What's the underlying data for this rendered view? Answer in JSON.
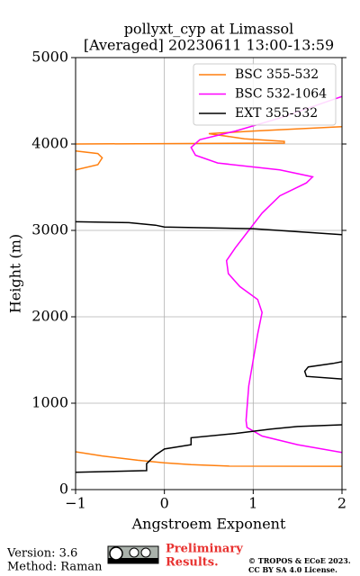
{
  "chart_data": {
    "type": "line",
    "title": "pollyxt_cyp at Limassol",
    "subtitle": "[Averaged] 20230611 13:00-13:59",
    "x_label": "Angstroem Exponent",
    "y_label": "Height (m)",
    "xlim": [
      -1,
      2
    ],
    "ylim": [
      0,
      5000
    ],
    "xticks": [
      {
        "value": -1,
        "label": "−1"
      },
      0,
      1,
      2
    ],
    "yticks": [
      0,
      1000,
      2000,
      3000,
      4000,
      5000
    ],
    "grid": true,
    "legend": "upper right",
    "series": [
      {
        "name": "BSC 355-532",
        "color": "#ff7f0e",
        "x": [
          2,
          0.73,
          0.3,
          0,
          -0.3,
          -0.7,
          -1,
          null,
          -1,
          -0.75,
          -0.7,
          -0.75,
          -1,
          null,
          -1,
          1.35,
          1.35,
          0.9,
          0.5,
          1.0,
          2
        ],
        "y": [
          270,
          272,
          290,
          310,
          340,
          390,
          437,
          null,
          3700,
          3760,
          3840,
          3890,
          3920,
          null,
          4000,
          4010,
          4030,
          4060,
          4120,
          4150,
          4200
        ]
      },
      {
        "name": "BSC 532-1064",
        "color": "#ff00ff",
        "x": [
          2,
          1.5,
          1.1,
          0.93,
          0.92,
          0.95,
          1.05,
          1.1,
          1.05,
          0.85,
          0.72,
          0.7,
          0.8,
          0.95,
          1.1,
          1.3,
          1.6,
          1.67,
          1.3,
          0.6,
          0.35,
          0.3,
          0.4,
          0.8,
          1.3,
          1.8,
          2
        ],
        "y": [
          430,
          520,
          620,
          720,
          800,
          1200,
          1800,
          2050,
          2200,
          2350,
          2500,
          2650,
          2800,
          3000,
          3200,
          3400,
          3550,
          3620,
          3700,
          3780,
          3870,
          3960,
          4050,
          4150,
          4300,
          4480,
          4550
        ]
      },
      {
        "name": "EXT 355-532",
        "color": "#000000",
        "x": [
          -1,
          -0.2,
          -0.2,
          -0.1,
          0,
          0.3,
          0.3,
          0.8,
          1.2,
          1.5,
          2,
          null,
          2,
          1.6,
          1.58,
          1.62,
          1.9,
          2,
          null,
          -1,
          -0.4,
          -0.1,
          0,
          1,
          2
        ],
        "y": [
          200,
          220,
          300,
          400,
          470,
          520,
          600,
          650,
          700,
          730,
          750,
          null,
          1280,
          1310,
          1370,
          1420,
          1460,
          1480,
          null,
          3100,
          3090,
          3060,
          3040,
          3020,
          2950
        ]
      }
    ]
  },
  "footer": {
    "version": "Version: 3.6",
    "method": "Method: Raman",
    "notice": "Preliminary Results.",
    "copyright": "© TROPOS & ECoE 2023.",
    "license": "CC BY SA 4.0 License."
  }
}
